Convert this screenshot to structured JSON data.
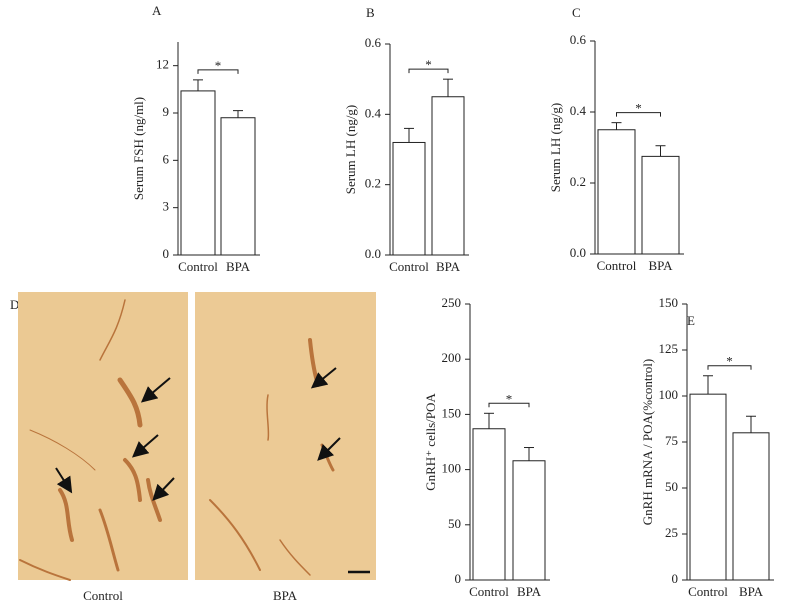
{
  "micrographs": {
    "label": "D",
    "captions": [
      "Control",
      "BPA"
    ]
  },
  "chart_data": [
    {
      "type": "bar",
      "label": "A",
      "ylabel": "Serum FSH (ng/ml)",
      "categories": [
        "Control",
        "BPA"
      ],
      "values": [
        10.4,
        8.7
      ],
      "errors": [
        0.7,
        0.45
      ],
      "color": "#ffffff",
      "ylim": [
        0,
        13.5
      ],
      "yticks": [
        0,
        3,
        6,
        9,
        12
      ],
      "significance": "*"
    },
    {
      "type": "bar",
      "label": "B",
      "ylabel": "Serum LH (ng/g)",
      "categories": [
        "Control",
        "BPA"
      ],
      "values": [
        0.32,
        0.45
      ],
      "errors": [
        0.04,
        0.05
      ],
      "color": "#ffffff",
      "ylim": [
        0,
        0.6
      ],
      "yticks": [
        {
          "value": 0,
          "label": "0.0"
        },
        0.2,
        0.4,
        0.6
      ],
      "significance": "*"
    },
    {
      "type": "bar",
      "label": "C",
      "ylabel": "Serum LH (ng/g)",
      "categories": [
        "Control",
        "BPA"
      ],
      "values": [
        0.35,
        0.275
      ],
      "errors": [
        0.02,
        0.03
      ],
      "color": "#ffffff",
      "ylim": [
        0,
        0.6
      ],
      "yticks": [
        {
          "value": 0,
          "label": "0.0"
        },
        0.2,
        0.4,
        0.6
      ],
      "significance": "*"
    },
    {
      "type": "bar",
      "ylabel": "GnRH⁺ cells/POA",
      "categories": [
        "Control",
        "BPA"
      ],
      "values": [
        137,
        108
      ],
      "errors": [
        14,
        12
      ],
      "color": "#ffffff",
      "ylim": [
        0,
        250
      ],
      "yticks": [
        0,
        50,
        100,
        150,
        200,
        250
      ],
      "significance": "*"
    },
    {
      "type": "bar",
      "label": "E",
      "ylabel": "GnRH mRNA / POA(%control)",
      "categories": [
        "Control",
        "BPA"
      ],
      "values": [
        101,
        80
      ],
      "errors": [
        10,
        9
      ],
      "color": "#ffffff",
      "ylim": [
        0,
        150
      ],
      "yticks": [
        0,
        25,
        50,
        75,
        100,
        125,
        150
      ],
      "significance": "*"
    }
  ]
}
